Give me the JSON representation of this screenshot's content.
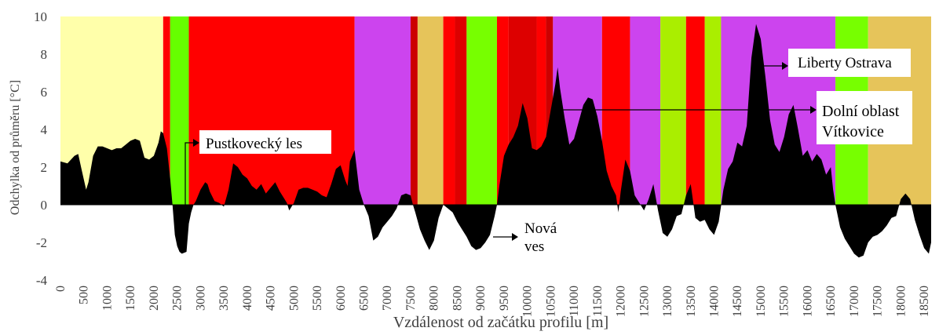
{
  "chart_data": {
    "type": "area",
    "title": "",
    "xlabel": "Vzdálenost od začátku profilu [m]",
    "ylabel": "Odchylka od průměru [°C]",
    "xlim": [
      0,
      18650
    ],
    "ylim": [
      -4,
      10
    ],
    "x_ticks": [
      "0",
      "500",
      "1000",
      "1500",
      "2000",
      "2500",
      "3000",
      "3500",
      "4000",
      "4500",
      "5000",
      "5500",
      "6000",
      "6500",
      "7000",
      "7500",
      "8000",
      "8500",
      "9000",
      "9500",
      "10000",
      "10500",
      "11000",
      "11500",
      "12000",
      "12500",
      "13000",
      "13500",
      "14000",
      "14500",
      "15000",
      "15500",
      "16000",
      "16500",
      "17000",
      "17500",
      "18000",
      "18500"
    ],
    "y_ticks": [
      "-4",
      "-2",
      "0",
      "2",
      "4",
      "6",
      "8",
      "10"
    ],
    "series": [
      {
        "name": "",
        "color": "#000000",
        "points": [
          [
            0,
            2.3
          ],
          [
            150,
            2.2
          ],
          [
            300,
            2.6
          ],
          [
            380,
            2.7
          ],
          [
            450,
            1.9
          ],
          [
            550,
            0.8
          ],
          [
            600,
            1.2
          ],
          [
            700,
            2.6
          ],
          [
            800,
            3.1
          ],
          [
            900,
            3.1
          ],
          [
            1000,
            3.0
          ],
          [
            1100,
            2.9
          ],
          [
            1200,
            3.0
          ],
          [
            1300,
            3.0
          ],
          [
            1400,
            3.2
          ],
          [
            1500,
            3.4
          ],
          [
            1600,
            3.5
          ],
          [
            1700,
            3.4
          ],
          [
            1800,
            2.5
          ],
          [
            1900,
            2.4
          ],
          [
            2000,
            2.6
          ],
          [
            2100,
            3.3
          ],
          [
            2150,
            3.9
          ],
          [
            2200,
            3.8
          ],
          [
            2280,
            3.0
          ],
          [
            2350,
            1.4
          ],
          [
            2400,
            0.0
          ],
          [
            2450,
            -1.6
          ],
          [
            2500,
            -2.2
          ],
          [
            2550,
            -2.5
          ],
          [
            2600,
            -2.6
          ],
          [
            2700,
            -2.5
          ],
          [
            2750,
            -1.0
          ],
          [
            2800,
            -0.4
          ],
          [
            2850,
            0.0
          ],
          [
            2900,
            0.2
          ],
          [
            3000,
            0.8
          ],
          [
            3100,
            1.2
          ],
          [
            3150,
            1.1
          ],
          [
            3200,
            0.7
          ],
          [
            3300,
            0.2
          ],
          [
            3400,
            0.1
          ],
          [
            3450,
            0.0
          ],
          [
            3500,
            -0.1
          ],
          [
            3600,
            0.8
          ],
          [
            3700,
            2.2
          ],
          [
            3800,
            2.0
          ],
          [
            3900,
            1.6
          ],
          [
            4000,
            1.4
          ],
          [
            4100,
            1.0
          ],
          [
            4200,
            0.8
          ],
          [
            4300,
            1.1
          ],
          [
            4400,
            0.6
          ],
          [
            4500,
            0.9
          ],
          [
            4600,
            1.2
          ],
          [
            4700,
            0.7
          ],
          [
            4800,
            0.3
          ],
          [
            4850,
            0.1
          ],
          [
            4900,
            -0.3
          ],
          [
            5000,
            0.1
          ],
          [
            5100,
            0.8
          ],
          [
            5200,
            0.9
          ],
          [
            5300,
            0.9
          ],
          [
            5400,
            0.8
          ],
          [
            5500,
            0.7
          ],
          [
            5600,
            0.5
          ],
          [
            5700,
            0.4
          ],
          [
            5800,
            1.1
          ],
          [
            5900,
            1.9
          ],
          [
            6000,
            2.1
          ],
          [
            6100,
            1.3
          ],
          [
            6150,
            1.0
          ],
          [
            6200,
            2.3
          ],
          [
            6300,
            2.9
          ],
          [
            6400,
            0.8
          ],
          [
            6500,
            0.0
          ],
          [
            6600,
            -0.6
          ],
          [
            6700,
            -1.9
          ],
          [
            6800,
            -1.7
          ],
          [
            6900,
            -1.2
          ],
          [
            7000,
            -0.9
          ],
          [
            7100,
            -0.6
          ],
          [
            7200,
            -0.2
          ],
          [
            7300,
            0.5
          ],
          [
            7400,
            0.6
          ],
          [
            7500,
            0.5
          ],
          [
            7550,
            0.0
          ],
          [
            7600,
            -0.4
          ],
          [
            7700,
            -1.3
          ],
          [
            7800,
            -1.9
          ],
          [
            7900,
            -2.4
          ],
          [
            8000,
            -1.9
          ],
          [
            8100,
            -0.7
          ],
          [
            8200,
            0.0
          ],
          [
            8300,
            -0.2
          ],
          [
            8400,
            -0.4
          ],
          [
            8500,
            -0.9
          ],
          [
            8600,
            -1.3
          ],
          [
            8700,
            -1.7
          ],
          [
            8800,
            -2.2
          ],
          [
            8900,
            -2.4
          ],
          [
            9000,
            -2.3
          ],
          [
            9100,
            -2.0
          ],
          [
            9200,
            -1.6
          ],
          [
            9300,
            -0.6
          ],
          [
            9350,
            0.0
          ],
          [
            9400,
            1.0
          ],
          [
            9500,
            2.6
          ],
          [
            9600,
            3.2
          ],
          [
            9700,
            3.6
          ],
          [
            9800,
            4.2
          ],
          [
            9900,
            5.4
          ],
          [
            10000,
            4.6
          ],
          [
            10100,
            3.0
          ],
          [
            10200,
            2.9
          ],
          [
            10300,
            3.1
          ],
          [
            10400,
            3.6
          ],
          [
            10500,
            5.0
          ],
          [
            10600,
            6.4
          ],
          [
            10650,
            7.3
          ],
          [
            10700,
            6.2
          ],
          [
            10800,
            4.6
          ],
          [
            10900,
            3.2
          ],
          [
            11000,
            3.5
          ],
          [
            11100,
            4.4
          ],
          [
            11200,
            5.3
          ],
          [
            11300,
            5.7
          ],
          [
            11400,
            5.6
          ],
          [
            11500,
            4.7
          ],
          [
            11600,
            3.4
          ],
          [
            11700,
            1.8
          ],
          [
            11800,
            1.0
          ],
          [
            11900,
            0.5
          ],
          [
            11950,
            -0.4
          ],
          [
            12000,
            0.7
          ],
          [
            12100,
            2.4
          ],
          [
            12200,
            1.8
          ],
          [
            12300,
            0.5
          ],
          [
            12400,
            0.1
          ],
          [
            12500,
            -0.3
          ],
          [
            12600,
            0.3
          ],
          [
            12700,
            1.1
          ],
          [
            12800,
            -0.3
          ],
          [
            12900,
            -1.5
          ],
          [
            13000,
            -1.7
          ],
          [
            13100,
            -1.3
          ],
          [
            13200,
            -0.6
          ],
          [
            13300,
            -0.5
          ],
          [
            13400,
            0.5
          ],
          [
            13500,
            1.1
          ],
          [
            13600,
            -0.7
          ],
          [
            13700,
            -0.9
          ],
          [
            13800,
            -0.8
          ],
          [
            13900,
            -1.3
          ],
          [
            14000,
            -1.6
          ],
          [
            14100,
            -0.9
          ],
          [
            14200,
            0.8
          ],
          [
            14300,
            1.9
          ],
          [
            14400,
            2.3
          ],
          [
            14500,
            3.3
          ],
          [
            14600,
            3.1
          ],
          [
            14700,
            4.2
          ],
          [
            14800,
            7.8
          ],
          [
            14900,
            9.6
          ],
          [
            15000,
            8.8
          ],
          [
            15100,
            6.8
          ],
          [
            15200,
            4.5
          ],
          [
            15300,
            3.2
          ],
          [
            15400,
            2.8
          ],
          [
            15500,
            3.6
          ],
          [
            15600,
            4.8
          ],
          [
            15700,
            5.3
          ],
          [
            15800,
            4.0
          ],
          [
            15900,
            2.6
          ],
          [
            16000,
            2.9
          ],
          [
            16100,
            2.3
          ],
          [
            16200,
            2.7
          ],
          [
            16300,
            2.4
          ],
          [
            16400,
            1.6
          ],
          [
            16500,
            2.0
          ],
          [
            16550,
            0.8
          ],
          [
            16600,
            0.0
          ],
          [
            16700,
            -1.2
          ],
          [
            16800,
            -1.8
          ],
          [
            16900,
            -2.2
          ],
          [
            17000,
            -2.6
          ],
          [
            17100,
            -2.8
          ],
          [
            17200,
            -2.7
          ],
          [
            17300,
            -2.0
          ],
          [
            17400,
            -1.7
          ],
          [
            17500,
            -1.6
          ],
          [
            17600,
            -1.4
          ],
          [
            17700,
            -1.1
          ],
          [
            17800,
            -0.7
          ],
          [
            17900,
            -0.6
          ],
          [
            18000,
            0.3
          ],
          [
            18100,
            0.6
          ],
          [
            18200,
            0.3
          ],
          [
            18300,
            -0.8
          ],
          [
            18400,
            -1.6
          ],
          [
            18500,
            -2.3
          ],
          [
            18600,
            -2.6
          ],
          [
            18650,
            -2.0
          ]
        ]
      }
    ],
    "background_bands": [
      {
        "from": 0,
        "to": 2200,
        "color": "#ffffaa"
      },
      {
        "from": 2200,
        "to": 2350,
        "color": "#ff0000"
      },
      {
        "from": 2350,
        "to": 2750,
        "color": "#66ff00"
      },
      {
        "from": 2750,
        "to": 6300,
        "color": "#ff0000"
      },
      {
        "from": 6300,
        "to": 7500,
        "color": "#cc44ee"
      },
      {
        "from": 7500,
        "to": 7650,
        "color": "#cc0000"
      },
      {
        "from": 7650,
        "to": 8200,
        "color": "#e6c45a"
      },
      {
        "from": 8200,
        "to": 8450,
        "color": "#ff0000"
      },
      {
        "from": 8450,
        "to": 8700,
        "color": "#dd0000"
      },
      {
        "from": 8700,
        "to": 9350,
        "color": "#77ff00"
      },
      {
        "from": 9350,
        "to": 9600,
        "color": "#ff0000"
      },
      {
        "from": 9600,
        "to": 10200,
        "color": "#dd0000"
      },
      {
        "from": 10200,
        "to": 10400,
        "color": "#ff0000"
      },
      {
        "from": 10400,
        "to": 10550,
        "color": "#cc0000"
      },
      {
        "from": 10550,
        "to": 11600,
        "color": "#cc44ee"
      },
      {
        "from": 11600,
        "to": 12200,
        "color": "#ff0000"
      },
      {
        "from": 12200,
        "to": 12850,
        "color": "#cc44ee"
      },
      {
        "from": 12850,
        "to": 13400,
        "color": "#aaee00"
      },
      {
        "from": 13400,
        "to": 13800,
        "color": "#ff0000"
      },
      {
        "from": 13800,
        "to": 14150,
        "color": "#aaee00"
      },
      {
        "from": 14150,
        "to": 16600,
        "color": "#cc44ee"
      },
      {
        "from": 16600,
        "to": 17300,
        "color": "#77ff00"
      },
      {
        "from": 17300,
        "to": 18650,
        "color": "#e6c45a"
      }
    ],
    "annotations": [
      {
        "id": "pustkovec",
        "lines": [
          "Pustkovecký les"
        ],
        "point": [
          2550,
          -2.6
        ]
      },
      {
        "id": "nova-ves",
        "lines": [
          "Nová",
          "ves"
        ],
        "point": [
          9000,
          -2.3
        ]
      },
      {
        "id": "liberty",
        "lines": [
          "Liberty Ostrava"
        ],
        "point": [
          15000,
          7.8
        ]
      },
      {
        "id": "dolni",
        "lines": [
          "Dolní oblast",
          "Vítkovice"
        ],
        "point": [
          10700,
          5.0
        ]
      }
    ]
  }
}
